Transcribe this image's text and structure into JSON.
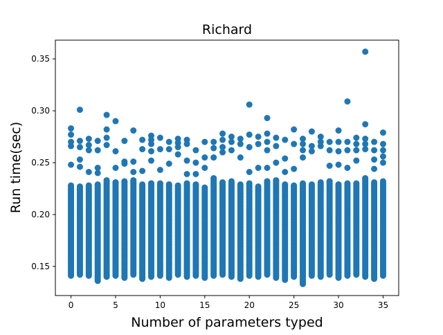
{
  "chart_data": {
    "type": "scatter",
    "title": "Richard",
    "xlabel": "Number of parameters typed",
    "ylabel": "Run time(sec)",
    "xlim": [
      -1.75,
      36.75
    ],
    "ylim": [
      0.1219,
      0.3681
    ],
    "xticks": [
      0,
      5,
      10,
      15,
      20,
      25,
      30,
      35
    ],
    "yticks": [
      0.15,
      0.2,
      0.25,
      0.3,
      0.35
    ],
    "ytick_labels": [
      "0.15",
      "0.20",
      "0.25",
      "0.30",
      "0.35"
    ],
    "grid": false,
    "marker_color": "#1f77b4",
    "series": [
      {
        "x": [
          0,
          1,
          2,
          3,
          4,
          5,
          6,
          7,
          8,
          9,
          10,
          11,
          12,
          13,
          14,
          15,
          16,
          17,
          18,
          19,
          20,
          21,
          22,
          23,
          24,
          25,
          26,
          27,
          28,
          29,
          30,
          31,
          32,
          33,
          34,
          35
        ],
        "y_min": [
          0.141,
          0.142,
          0.141,
          0.136,
          0.14,
          0.141,
          0.139,
          0.142,
          0.138,
          0.14,
          0.141,
          0.139,
          0.142,
          0.14,
          0.141,
          0.139,
          0.141,
          0.142,
          0.14,
          0.138,
          0.141,
          0.14,
          0.142,
          0.139,
          0.137,
          0.14,
          0.133,
          0.141,
          0.14,
          0.142,
          0.139,
          0.141,
          0.142,
          0.14,
          0.138,
          0.141
        ],
        "y_dense_max": [
          0.228,
          0.227,
          0.228,
          0.229,
          0.233,
          0.231,
          0.232,
          0.233,
          0.229,
          0.23,
          0.23,
          0.229,
          0.228,
          0.23,
          0.229,
          0.226,
          0.235,
          0.231,
          0.232,
          0.229,
          0.23,
          0.227,
          0.232,
          0.233,
          0.229,
          0.228,
          0.23,
          0.229,
          0.231,
          0.232,
          0.229,
          0.23,
          0.23,
          0.235,
          0.231,
          0.232
        ],
        "y_outliers": [
          [
            0.283,
            0.277,
            0.27,
            0.266,
            0.248
          ],
          [
            0.301,
            0.271,
            0.265,
            0.253,
            0.246
          ],
          [
            0.273,
            0.267,
            0.262,
            0.241
          ],
          [
            0.271,
            0.262,
            0.245,
            0.24
          ],
          [
            0.296,
            0.282,
            0.274,
            0.267
          ],
          [
            0.29,
            0.261,
            0.245
          ],
          [
            0.271,
            0.251,
            0.249
          ],
          [
            0.281,
            0.251,
            0.241
          ],
          [
            0.272,
            0.263,
            0.242
          ],
          [
            0.276,
            0.272,
            0.268,
            0.261,
            0.252
          ],
          [
            0.274,
            0.263,
            0.243
          ],
          [
            0.27,
            0.263,
            0.249
          ],
          [
            0.273,
            0.269,
            0.265,
            0.258
          ],
          [
            0.272,
            0.268,
            0.252,
            0.239
          ],
          [
            0.262,
            0.25,
            0.239
          ],
          [
            0.27,
            0.255,
            0.245
          ],
          [
            0.27,
            0.264,
            0.255
          ],
          [
            0.278,
            0.272,
            0.265,
            0.26
          ],
          [
            0.275,
            0.27,
            0.262
          ],
          [
            0.273,
            0.268,
            0.255
          ],
          [
            0.306,
            0.277,
            0.265,
            0.241
          ],
          [
            0.275,
            0.268,
            0.245
          ],
          [
            0.293,
            0.278,
            0.27,
            0.262,
            0.245
          ],
          [
            0.274,
            0.266,
            0.25
          ],
          [
            0.272,
            0.254,
            0.241
          ],
          [
            0.282,
            0.268,
            0.244
          ],
          [
            0.273,
            0.268,
            0.262,
            0.255
          ],
          [
            0.28,
            0.266,
            0.261
          ],
          [
            0.275,
            0.27,
            0.266
          ],
          [
            0.27,
            0.262,
            0.247
          ],
          [
            0.281,
            0.27,
            0.261,
            0.248
          ],
          [
            0.309,
            0.27,
            0.262,
            0.245
          ],
          [
            0.274,
            0.268,
            0.262,
            0.252
          ],
          [
            0.357,
            0.287,
            0.273,
            0.268,
            0.263
          ],
          [
            0.27,
            0.262,
            0.253,
            0.244
          ],
          [
            0.279,
            0.268,
            0.262,
            0.256,
            0.25
          ]
        ]
      }
    ]
  }
}
